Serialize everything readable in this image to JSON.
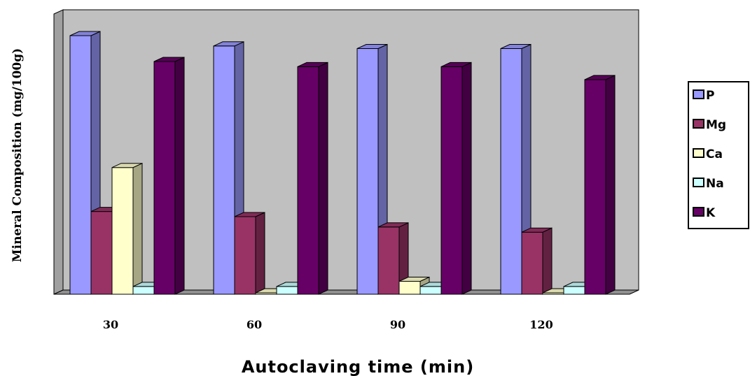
{
  "chart_data": {
    "type": "bar",
    "title": "",
    "xlabel": "Autoclaving time (min)",
    "ylabel": "Mineral Composition (mg/100g)",
    "categories": [
      "30",
      "60",
      "90",
      "120"
    ],
    "ylim": [
      0,
      100
    ],
    "grid": false,
    "legend_position": "right",
    "series": [
      {
        "name": "P",
        "values": [
          100,
          96,
          95,
          95
        ],
        "color": "#9999ff"
      },
      {
        "name": "Mg",
        "values": [
          32,
          30,
          26,
          24
        ],
        "color": "#993366"
      },
      {
        "name": "Ca",
        "values": [
          49,
          0,
          5,
          0
        ],
        "color": "#ffffcc"
      },
      {
        "name": "Na",
        "values": [
          3,
          3,
          3,
          3
        ],
        "color": "#ccffff"
      },
      {
        "name": "K",
        "values": [
          90,
          88,
          88,
          83
        ],
        "color": "#660066"
      }
    ]
  }
}
